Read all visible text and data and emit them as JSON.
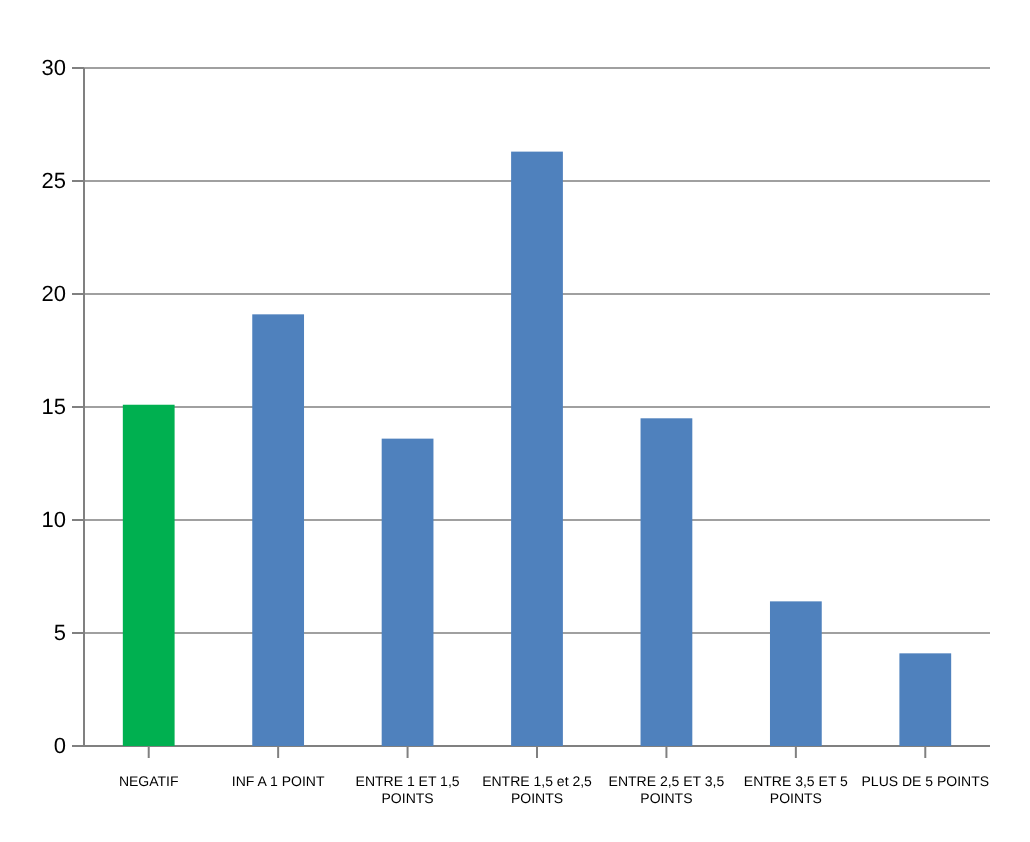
{
  "chart_data": {
    "type": "bar",
    "categories": [
      "NEGATIF",
      "INF A 1 POINT",
      "ENTRE 1 ET 1,5 POINTS",
      "ENTRE 1,5 et 2,5 POINTS",
      "ENTRE 2,5 ET 3,5 POINTS",
      "ENTRE 3,5 ET 5 POINTS",
      "PLUS DE 5 POINTS"
    ],
    "values": [
      15.1,
      19.1,
      13.6,
      26.3,
      14.5,
      6.4,
      4.1
    ],
    "colors": [
      "#00b050",
      "#4f81bd",
      "#4f81bd",
      "#4f81bd",
      "#4f81bd",
      "#4f81bd",
      "#4f81bd"
    ],
    "ylim": [
      0,
      30
    ],
    "yticks": [
      0,
      5,
      10,
      15,
      20,
      25,
      30
    ],
    "grid": "y"
  }
}
